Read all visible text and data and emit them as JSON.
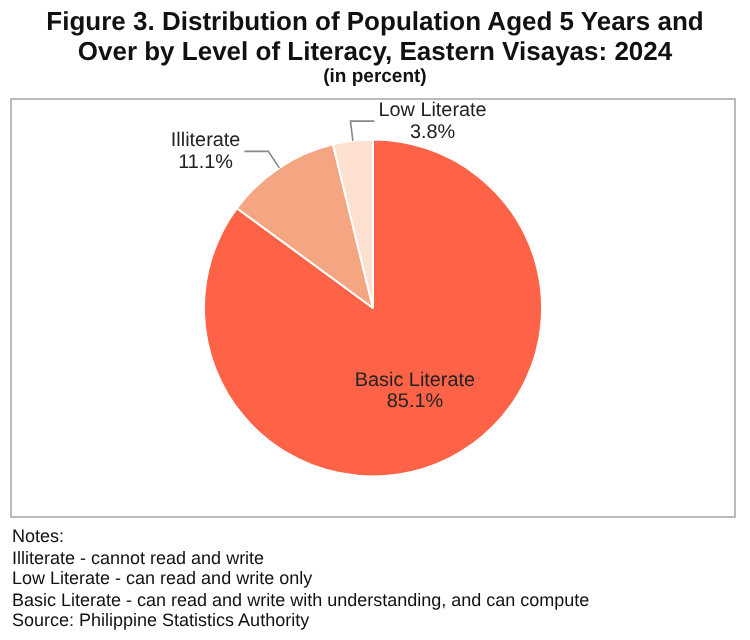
{
  "chart_data": {
    "type": "pie",
    "title": "Figure 3. Distribution of Population Aged 5 Years and Over by Level of Literacy, Eastern Visayas: 2024",
    "subtitle": "(in percent)",
    "categories": [
      "Basic Literate",
      "Illiterate",
      "Low Literate"
    ],
    "values": [
      85.1,
      11.1,
      3.8
    ],
    "value_labels": [
      "85.1%",
      "11.1%",
      "3.8%"
    ],
    "colors": [
      "#ff6347",
      "#f4a582",
      "#fde0cf"
    ],
    "legend": false,
    "annotations": [
      "Notes:",
      "Illiterate - cannot read and write",
      "Low Literate - can read and write only",
      "Basic Literate - can read and write with understanding, and can compute",
      "Source: Philippine Statistics Authority"
    ]
  }
}
